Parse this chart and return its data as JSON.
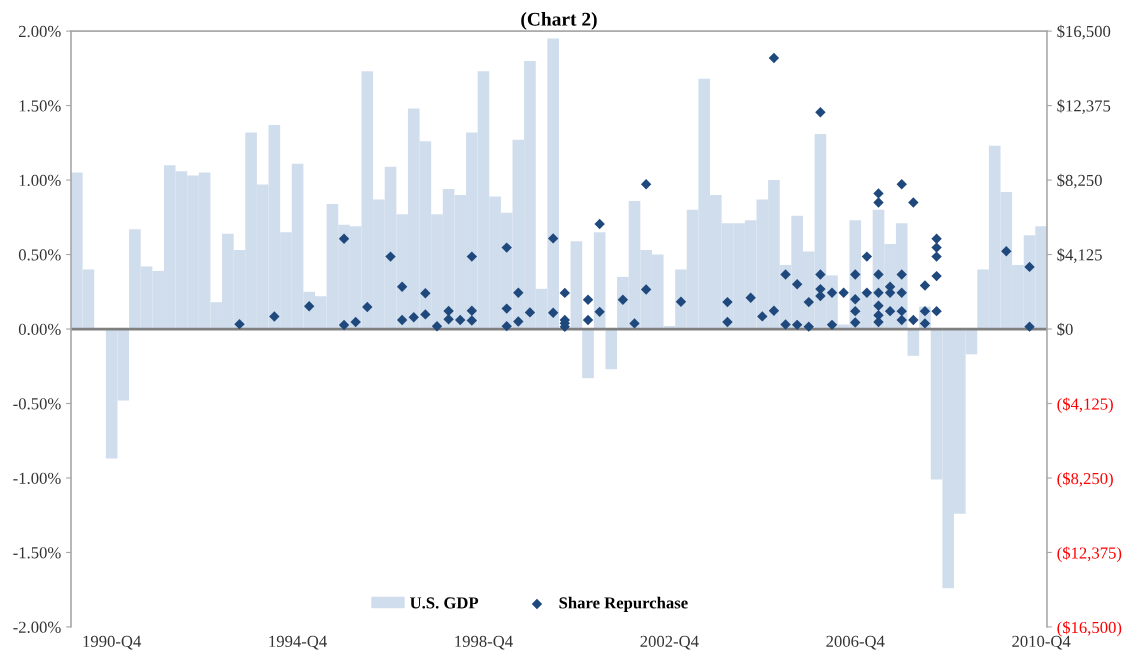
{
  "chart_data": {
    "type": "bar",
    "title": "(Chart 2)",
    "categories": [
      null,
      null,
      null,
      "1990-Q4",
      null,
      null,
      null,
      null,
      null,
      null,
      null,
      null,
      null,
      null,
      null,
      null,
      null,
      null,
      null,
      "1994-Q4",
      null,
      null,
      null,
      null,
      null,
      null,
      null,
      null,
      null,
      null,
      null,
      null,
      null,
      null,
      null,
      "1998-Q4",
      null,
      null,
      null,
      null,
      null,
      null,
      null,
      null,
      null,
      null,
      null,
      null,
      null,
      null,
      null,
      "2002-Q4",
      null,
      null,
      null,
      null,
      null,
      null,
      null,
      null,
      null,
      null,
      null,
      null,
      null,
      null,
      null,
      "2006-Q4",
      null,
      null,
      null,
      null,
      null,
      null,
      null,
      null,
      null,
      null,
      null,
      null,
      null,
      null,
      null,
      "2010-Q4"
    ],
    "ylim": [
      -2,
      2
    ],
    "yticks": [
      {
        "value": -2,
        "label": "-2.00%"
      },
      {
        "value": -1.5,
        "label": "-1.50%"
      },
      {
        "value": -1,
        "label": "-1.00%"
      },
      {
        "value": -0.5,
        "label": "-0.50%"
      },
      {
        "value": 0,
        "label": "0.00%"
      },
      {
        "value": 0.5,
        "label": "0.50%"
      },
      {
        "value": 1,
        "label": "1.00%"
      },
      {
        "value": 1.5,
        "label": "1.50%"
      },
      {
        "value": 2,
        "label": "2.00%"
      }
    ],
    "y2lim": [
      -16500,
      16500
    ],
    "y2ticks": [
      {
        "value": -16500,
        "label": "($16,500)"
      },
      {
        "value": -12375,
        "label": "($12,375)"
      },
      {
        "value": -8250,
        "label": "($8,250)"
      },
      {
        "value": -4125,
        "label": "($4,125)"
      },
      {
        "value": 0,
        "label": "$0"
      },
      {
        "value": 4125,
        "label": "$4,125"
      },
      {
        "value": 8250,
        "label": "$8,250"
      },
      {
        "value": 12375,
        "label": "$12,375"
      },
      {
        "value": 16500,
        "label": "$16,500"
      }
    ],
    "legend": "bottom",
    "series": [
      {
        "name": "U.S. GDP",
        "color": "#d0ddec",
        "values": [
          1.05,
          0.4,
          0,
          -0.87,
          -0.48,
          0.67,
          0.42,
          0.39,
          1.1,
          1.06,
          1.03,
          1.05,
          0.18,
          0.64,
          0.53,
          1.32,
          0.97,
          1.37,
          0.65,
          1.11,
          0.25,
          0.22,
          0.84,
          0.7,
          0.69,
          1.73,
          0.87,
          1.09,
          0.77,
          1.48,
          1.26,
          0.77,
          0.94,
          0.9,
          1.32,
          1.73,
          0.89,
          0.78,
          1.27,
          1.8,
          0.27,
          1.95,
          0,
          0.59,
          -0.33,
          0.65,
          -0.27,
          0.35,
          0.86,
          0.53,
          0.5,
          0.02,
          0.4,
          0.8,
          1.68,
          0.9,
          0.71,
          0.71,
          0.73,
          0.87,
          1.0,
          0.43,
          0.76,
          0.52,
          1.31,
          0.36,
          0.03,
          0.73,
          0.25,
          0.8,
          0.57,
          0.71,
          -0.18,
          0.15,
          -1.01,
          -1.74,
          -1.24,
          -0.17,
          0.4,
          1.23,
          0.92,
          0.43,
          0.63,
          0.69
        ]
      },
      {
        "name": "Share Repurchase",
        "type": "scatter",
        "axis": "y2",
        "marker": "diamond",
        "color": "#1f497d",
        "values": [
          null,
          null,
          null,
          null,
          null,
          null,
          null,
          null,
          null,
          null,
          null,
          null,
          null,
          null,
          270,
          null,
          null,
          690,
          null,
          null,
          1260,
          null,
          null,
          5000,
          390,
          1220,
          null,
          4010,
          2340,
          650,
          1980,
          150,
          1000,
          500,
          4010,
          null,
          null,
          4510,
          2010,
          920,
          null,
          5020,
          2000,
          null,
          1620,
          5820,
          null,
          1620,
          310,
          8020,
          null,
          null,
          1510,
          null,
          null,
          null,
          1490,
          null,
          1730,
          700,
          15010,
          3020,
          2480,
          1490,
          12010,
          2010,
          2010,
          3020,
          4010,
          7510,
          2340,
          8020,
          7010,
          2410,
          5000,
          null,
          null,
          null,
          null,
          null,
          4310,
          null,
          3440,
          null
        ]
      },
      {
        "type": "scatter",
        "axis": "y2",
        "marker": "diamond",
        "color": "#1f497d",
        "values": [
          null,
          null,
          null,
          null,
          null,
          null,
          null,
          null,
          null,
          null,
          null,
          null,
          null,
          null,
          null,
          null,
          null,
          null,
          null,
          null,
          null,
          null,
          null,
          220,
          null,
          null,
          null,
          null,
          500,
          null,
          810,
          null,
          540,
          null,
          1010,
          null,
          null,
          1130,
          420,
          null,
          null,
          900,
          500,
          null,
          500,
          950,
          null,
          null,
          null,
          2190,
          null,
          null,
          null,
          null,
          null,
          null,
          390,
          null,
          null,
          null,
          1010,
          250,
          230,
          130,
          3020,
          230,
          null,
          1650,
          2010,
          7010,
          2010,
          3020,
          500,
          990,
          4510,
          null,
          null,
          null,
          null,
          null,
          null,
          null,
          130,
          null
        ]
      },
      {
        "type": "scatter",
        "axis": "y2",
        "marker": "diamond",
        "color": "#1f497d",
        "values": [
          null,
          null,
          null,
          null,
          null,
          null,
          null,
          null,
          null,
          null,
          null,
          null,
          null,
          null,
          null,
          null,
          null,
          null,
          null,
          null,
          null,
          null,
          null,
          null,
          null,
          null,
          null,
          null,
          null,
          null,
          null,
          null,
          null,
          null,
          470,
          null,
          null,
          160,
          null,
          null,
          null,
          null,
          320,
          null,
          null,
          null,
          null,
          null,
          null,
          null,
          null,
          null,
          null,
          null,
          null,
          null,
          null,
          null,
          null,
          null,
          null,
          null,
          null,
          null,
          2210,
          null,
          null,
          990,
          null,
          3020,
          990,
          2010,
          null,
          310,
          4010,
          null,
          null,
          null,
          null,
          null,
          null,
          null,
          null,
          null
        ]
      },
      {
        "type": "scatter",
        "axis": "y2",
        "marker": "diamond",
        "color": "#1f497d",
        "values": [
          null,
          null,
          null,
          null,
          null,
          null,
          null,
          null,
          null,
          null,
          null,
          null,
          null,
          null,
          null,
          null,
          null,
          null,
          null,
          null,
          null,
          null,
          null,
          null,
          null,
          null,
          null,
          null,
          null,
          null,
          null,
          null,
          null,
          null,
          null,
          null,
          null,
          null,
          null,
          null,
          null,
          null,
          120,
          null,
          null,
          null,
          null,
          null,
          null,
          null,
          null,
          null,
          null,
          null,
          null,
          null,
          null,
          null,
          null,
          null,
          null,
          null,
          null,
          null,
          1830,
          null,
          null,
          360,
          null,
          2010,
          null,
          990,
          null,
          null,
          2930,
          null,
          null,
          null,
          null,
          null,
          null,
          null,
          null,
          null
        ]
      },
      {
        "type": "scatter",
        "axis": "y2",
        "marker": "diamond",
        "color": "#1f497d",
        "values": [
          null,
          null,
          null,
          null,
          null,
          null,
          null,
          null,
          null,
          null,
          null,
          null,
          null,
          null,
          null,
          null,
          null,
          null,
          null,
          null,
          null,
          null,
          null,
          null,
          null,
          null,
          null,
          null,
          null,
          null,
          null,
          null,
          null,
          null,
          null,
          null,
          null,
          null,
          null,
          null,
          null,
          null,
          null,
          null,
          null,
          null,
          null,
          null,
          null,
          null,
          null,
          null,
          null,
          null,
          null,
          null,
          null,
          null,
          null,
          null,
          null,
          null,
          null,
          null,
          null,
          null,
          null,
          null,
          null,
          null,
          null,
          500,
          null,
          null,
          990,
          null,
          null,
          null,
          null,
          null,
          null,
          null,
          null,
          null
        ]
      },
      {
        "type": "scatter",
        "axis": "y2",
        "marker": "diamond",
        "color": "#1f497d",
        "values": [
          null,
          null,
          null,
          null,
          null,
          null,
          null,
          null,
          null,
          null,
          null,
          null,
          null,
          null,
          null,
          null,
          null,
          null,
          null,
          null,
          null,
          null,
          null,
          null,
          null,
          null,
          null,
          null,
          null,
          null,
          null,
          null,
          null,
          null,
          null,
          null,
          null,
          null,
          null,
          null,
          null,
          null,
          null,
          null,
          null,
          null,
          null,
          null,
          null,
          null,
          null,
          null,
          null,
          null,
          null,
          null,
          null,
          null,
          null,
          null,
          null,
          null,
          null,
          null,
          null,
          null,
          null,
          null,
          null,
          1290,
          null,
          null,
          null,
          null,
          null,
          null,
          null,
          null,
          null,
          null,
          null,
          null,
          null,
          null
        ]
      },
      {
        "type": "scatter",
        "axis": "y2",
        "marker": "diamond",
        "color": "#1f497d",
        "values": [
          null,
          null,
          null,
          null,
          null,
          null,
          null,
          null,
          null,
          null,
          null,
          null,
          null,
          null,
          null,
          null,
          null,
          null,
          null,
          null,
          null,
          null,
          null,
          null,
          null,
          null,
          null,
          null,
          null,
          null,
          null,
          null,
          null,
          null,
          null,
          null,
          null,
          null,
          null,
          null,
          null,
          null,
          null,
          null,
          null,
          null,
          null,
          null,
          null,
          null,
          null,
          null,
          null,
          null,
          null,
          null,
          null,
          null,
          null,
          null,
          null,
          null,
          null,
          null,
          null,
          null,
          null,
          null,
          null,
          760,
          null,
          null,
          null,
          null,
          null,
          null,
          null,
          null,
          null,
          null,
          null,
          null,
          null,
          null
        ]
      },
      {
        "type": "scatter",
        "axis": "y2",
        "marker": "diamond",
        "color": "#1f497d",
        "values": [
          null,
          null,
          null,
          null,
          null,
          null,
          null,
          null,
          null,
          null,
          null,
          null,
          null,
          null,
          null,
          null,
          null,
          null,
          null,
          null,
          null,
          null,
          null,
          null,
          null,
          null,
          null,
          null,
          null,
          null,
          null,
          null,
          null,
          null,
          null,
          null,
          null,
          null,
          null,
          null,
          null,
          null,
          null,
          null,
          null,
          null,
          null,
          null,
          null,
          null,
          null,
          null,
          null,
          null,
          null,
          null,
          null,
          null,
          null,
          null,
          null,
          null,
          null,
          null,
          null,
          null,
          null,
          null,
          null,
          390,
          null,
          null,
          null,
          null,
          null,
          null,
          null,
          null,
          null,
          null,
          null,
          null,
          null,
          null
        ]
      }
    ]
  }
}
